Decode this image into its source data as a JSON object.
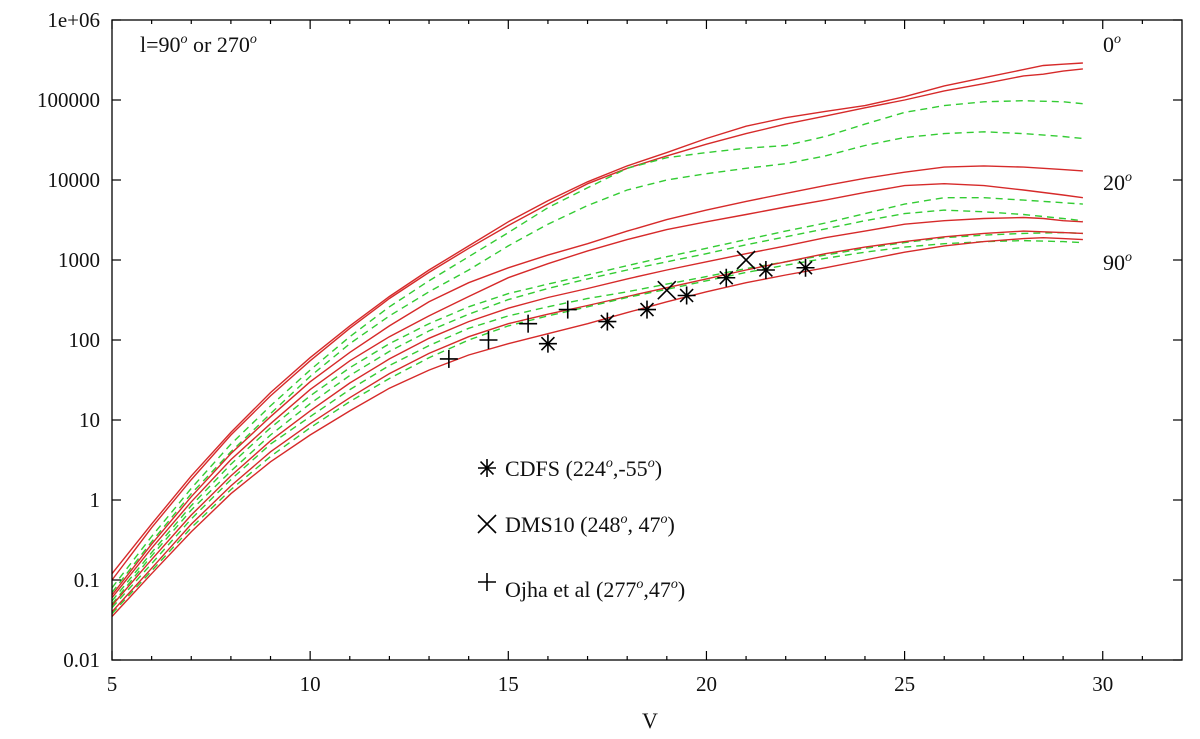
{
  "chart_data": {
    "type": "line",
    "title": "",
    "xlabel": "V",
    "ylabel": "",
    "xlim": [
      5,
      32
    ],
    "ylim": [
      0.01,
      1000000
    ],
    "yscale": "log",
    "grid": false,
    "x_ticks": [
      5,
      10,
      15,
      20,
      25,
      30
    ],
    "x_tick_labels": [
      "5",
      "10",
      "15",
      "20",
      "25",
      "30"
    ],
    "y_ticks": [
      0.01,
      0.1,
      1,
      10,
      100,
      1000,
      10000,
      100000,
      1000000
    ],
    "y_tick_labels": [
      "0.01",
      "0.1",
      "1",
      "10",
      "100",
      "1000",
      "10000",
      "100000",
      "1e+06"
    ],
    "annotations": {
      "top_left": {
        "prefix": "l=90",
        "sup1": "o",
        "mid": " or 270",
        "sup2": "o"
      },
      "right_0": {
        "base": "0",
        "sup": "o"
      },
      "right_20": {
        "base": "20",
        "sup": "o"
      },
      "right_90": {
        "base": "90",
        "sup": "o"
      }
    },
    "colors": {
      "model_solid": "#d62a2a",
      "model_dashed": "#33cc33",
      "points": "#000000"
    },
    "model_curves": [
      {
        "style": "solid",
        "x": [
          5,
          6,
          7,
          8,
          9,
          10,
          11,
          12,
          13,
          14,
          15,
          16,
          17,
          18,
          19,
          20,
          21,
          22,
          23,
          24,
          25,
          26,
          27,
          28,
          28.5,
          29,
          29.5
        ],
        "y": [
          0.12,
          0.5,
          2,
          7,
          22,
          60,
          150,
          350,
          750,
          1500,
          3000,
          5500,
          9500,
          15000,
          22000,
          33000,
          47000,
          60000,
          72000,
          85000,
          110000,
          150000,
          190000,
          240000,
          270000,
          280000,
          290000
        ]
      },
      {
        "style": "solid",
        "x": [
          5,
          6,
          7,
          8,
          9,
          10,
          11,
          12,
          13,
          14,
          15,
          16,
          17,
          18,
          19,
          20,
          21,
          22,
          23,
          24,
          25,
          26,
          27,
          28,
          28.5,
          29,
          29.5
        ],
        "y": [
          0.1,
          0.45,
          1.8,
          6.5,
          20,
          55,
          140,
          330,
          700,
          1400,
          2700,
          5000,
          9000,
          14000,
          20000,
          28000,
          38000,
          50000,
          63000,
          80000,
          100000,
          130000,
          160000,
          200000,
          210000,
          230000,
          245000
        ]
      },
      {
        "style": "dashed",
        "x": [
          5,
          6,
          7,
          8,
          9,
          10,
          11,
          12,
          13,
          14,
          15,
          16,
          17,
          18,
          19,
          20,
          21,
          22,
          23,
          24,
          25,
          26,
          27,
          28,
          29,
          29.5
        ],
        "y": [
          0.08,
          0.35,
          1.4,
          5,
          15,
          42,
          110,
          260,
          550,
          1100,
          2200,
          4500,
          8000,
          14000,
          19000,
          22000,
          25000,
          27000,
          35000,
          50000,
          70000,
          85000,
          95000,
          98000,
          95000,
          90000
        ]
      },
      {
        "style": "dashed",
        "x": [
          5,
          6,
          7,
          8,
          9,
          10,
          11,
          12,
          13,
          14,
          15,
          16,
          17,
          18,
          19,
          20,
          21,
          22,
          23,
          24,
          25,
          26,
          27,
          28,
          29,
          29.5
        ],
        "y": [
          0.07,
          0.3,
          1.2,
          4,
          12,
          35,
          90,
          200,
          400,
          750,
          1500,
          2800,
          4800,
          7500,
          10000,
          12000,
          14000,
          16000,
          20000,
          27000,
          34000,
          38000,
          40000,
          38000,
          35000,
          33000
        ]
      },
      {
        "style": "solid",
        "x": [
          5,
          6,
          7,
          8,
          9,
          10,
          11,
          12,
          13,
          14,
          15,
          16,
          17,
          18,
          19,
          20,
          21,
          22,
          23,
          24,
          25,
          26,
          27,
          28,
          29,
          29.5
        ],
        "y": [
          0.065,
          0.28,
          1.1,
          3.8,
          11,
          30,
          70,
          150,
          300,
          520,
          800,
          1150,
          1600,
          2300,
          3200,
          4200,
          5400,
          6800,
          8500,
          10500,
          12500,
          14500,
          15000,
          14500,
          13500,
          13000
        ]
      },
      {
        "style": "solid",
        "x": [
          5,
          6,
          7,
          8,
          9,
          10,
          11,
          12,
          13,
          14,
          15,
          16,
          17,
          18,
          19,
          20,
          21,
          22,
          23,
          24,
          25,
          26,
          27,
          28,
          29,
          29.5
        ],
        "y": [
          0.06,
          0.25,
          0.95,
          3.2,
          9,
          24,
          55,
          110,
          200,
          350,
          600,
          900,
          1300,
          1800,
          2400,
          3000,
          3700,
          4600,
          5600,
          7000,
          8500,
          9000,
          8500,
          7500,
          6500,
          6000
        ]
      },
      {
        "style": "dashed",
        "x": [
          5,
          6,
          7,
          8,
          9,
          10,
          11,
          12,
          13,
          14,
          15,
          16,
          17,
          18,
          19,
          20,
          21,
          22,
          23,
          24,
          25,
          26,
          27,
          28,
          29,
          29.5
        ],
        "y": [
          0.055,
          0.22,
          0.85,
          2.8,
          8,
          20,
          45,
          90,
          160,
          260,
          380,
          500,
          650,
          850,
          1100,
          1400,
          1800,
          2300,
          2900,
          3800,
          5000,
          6000,
          6000,
          5600,
          5200,
          5000
        ]
      },
      {
        "style": "dashed",
        "x": [
          5,
          6,
          7,
          8,
          9,
          10,
          11,
          12,
          13,
          14,
          15,
          16,
          17,
          18,
          19,
          20,
          21,
          22,
          23,
          24,
          25,
          26,
          27,
          28,
          29,
          29.5
        ],
        "y": [
          0.05,
          0.2,
          0.75,
          2.3,
          6.5,
          16,
          36,
          72,
          130,
          210,
          320,
          440,
          580,
          750,
          950,
          1200,
          1550,
          1950,
          2450,
          3100,
          3800,
          4200,
          4000,
          3700,
          3300,
          3100
        ]
      },
      {
        "style": "solid",
        "x": [
          5,
          6,
          7,
          8,
          9,
          10,
          11,
          12,
          13,
          14,
          15,
          16,
          17,
          18,
          19,
          20,
          21,
          22,
          23,
          24,
          25,
          26,
          27,
          28,
          28.5,
          29,
          29.5
        ],
        "y": [
          0.048,
          0.18,
          0.65,
          2,
          5.5,
          13,
          29,
          58,
          105,
          170,
          250,
          340,
          440,
          580,
          750,
          950,
          1200,
          1500,
          1900,
          2300,
          2800,
          3100,
          3300,
          3400,
          3300,
          3100,
          3000
        ]
      },
      {
        "style": "dashed",
        "x": [
          5,
          6,
          7,
          8,
          9,
          10,
          11,
          12,
          13,
          14,
          15,
          16,
          17,
          18,
          19,
          20,
          21,
          22,
          23,
          24,
          25,
          26,
          27,
          28,
          29,
          29.5
        ],
        "y": [
          0.045,
          0.16,
          0.58,
          1.8,
          5,
          11,
          24,
          48,
          85,
          140,
          200,
          260,
          330,
          400,
          500,
          620,
          780,
          950,
          1150,
          1400,
          1650,
          1900,
          2050,
          2150,
          2200,
          2150
        ]
      },
      {
        "style": "solid",
        "x": [
          5,
          6,
          7,
          8,
          9,
          10,
          11,
          12,
          13,
          14,
          15,
          16,
          17,
          18,
          19,
          20,
          21,
          22,
          23,
          24,
          25,
          26,
          27,
          28,
          29,
          29.5
        ],
        "y": [
          0.04,
          0.14,
          0.5,
          1.5,
          4,
          9,
          19,
          38,
          68,
          110,
          160,
          210,
          270,
          350,
          450,
          580,
          750,
          950,
          1200,
          1450,
          1700,
          1950,
          2150,
          2300,
          2200,
          2150
        ]
      },
      {
        "style": "dashed",
        "x": [
          5,
          6,
          7,
          8,
          9,
          10,
          11,
          12,
          13,
          14,
          15,
          16,
          17,
          18,
          19,
          20,
          21,
          22,
          23,
          24,
          25,
          26,
          27,
          28,
          29,
          29.5
        ],
        "y": [
          0.038,
          0.13,
          0.45,
          1.35,
          3.5,
          8,
          17,
          33,
          60,
          100,
          150,
          200,
          260,
          340,
          430,
          550,
          700,
          860,
          1050,
          1250,
          1450,
          1600,
          1700,
          1750,
          1700,
          1650
        ]
      },
      {
        "style": "solid",
        "x": [
          5,
          6,
          7,
          8,
          9,
          10,
          11,
          12,
          13,
          14,
          15,
          16,
          17,
          18,
          19,
          20,
          21,
          22,
          23,
          24,
          25,
          26,
          27,
          28,
          28.5,
          29,
          29.5
        ],
        "y": [
          0.035,
          0.12,
          0.4,
          1.2,
          3,
          6.5,
          13,
          25,
          42,
          65,
          90,
          120,
          160,
          220,
          300,
          400,
          520,
          650,
          800,
          1000,
          1250,
          1500,
          1700,
          1850,
          1900,
          1850,
          1800
        ]
      }
    ],
    "series": [
      {
        "name": "CDFS (224°,-55°)",
        "marker": "asterisk",
        "x": [
          16,
          17.5,
          18.5,
          19.5,
          20.5,
          21.5,
          22.5
        ],
        "y": [
          90,
          170,
          240,
          360,
          600,
          750,
          800
        ]
      },
      {
        "name": "DMS10 (248°, 47°)",
        "marker": "cross",
        "x": [
          19,
          21
        ],
        "y": [
          420,
          1000
        ]
      },
      {
        "name": "Ojha et al (277°,47°)",
        "marker": "plus",
        "x": [
          13.5,
          14.5,
          15.5,
          16.5
        ],
        "y": [
          58,
          100,
          160,
          240
        ]
      }
    ],
    "legend": {
      "placement": "center",
      "entries": [
        {
          "marker": "asterisk",
          "base": "CDFS (224",
          "s1": "o",
          "mid": ",-55",
          "s2": "o",
          "end": ")"
        },
        {
          "marker": "cross",
          "base": "DMS10 (248",
          "s1": "o",
          "mid": ", 47",
          "s2": "o",
          "end": ")"
        },
        {
          "marker": "plus",
          "base": "Ojha et al (277",
          "s1": "o",
          "mid": ",47",
          "s2": "o",
          "end": ")"
        }
      ]
    }
  }
}
